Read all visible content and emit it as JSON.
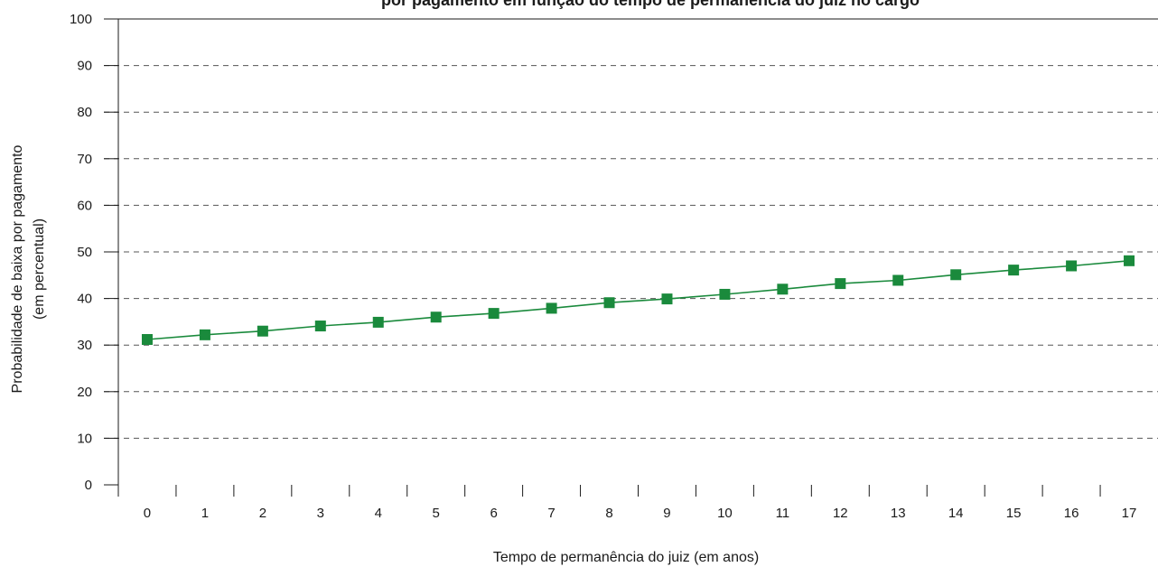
{
  "chart_data": {
    "type": "line",
    "title": "por pagamento em função do tempo de permanência do juiz no cargo",
    "xlabel": "Tempo de permanência do juiz (em anos)",
    "ylabel_line1": "Probabilidade de baixa por pagamento",
    "ylabel_line2": "(em percentual)",
    "x": [
      0,
      1,
      2,
      3,
      4,
      5,
      6,
      7,
      8,
      9,
      10,
      11,
      12,
      13,
      14,
      15,
      16,
      17
    ],
    "series": [
      {
        "values": [
          31.2,
          32.2,
          33.0,
          34.1,
          34.9,
          36.0,
          36.8,
          37.9,
          39.1,
          39.9,
          40.9,
          42.0,
          43.2,
          43.9,
          45.1,
          46.1,
          47.0,
          48.1
        ],
        "color": "#1a8a3c",
        "marker": "square"
      }
    ],
    "ylim": [
      0,
      100
    ],
    "yticks": [
      0,
      10,
      20,
      30,
      40,
      50,
      60,
      70,
      80,
      90,
      100
    ],
    "grid": "horizontal dashed",
    "colors": {
      "line": "#1a8a3c",
      "grid": "#555555",
      "axis": "#1a1a1a"
    }
  }
}
